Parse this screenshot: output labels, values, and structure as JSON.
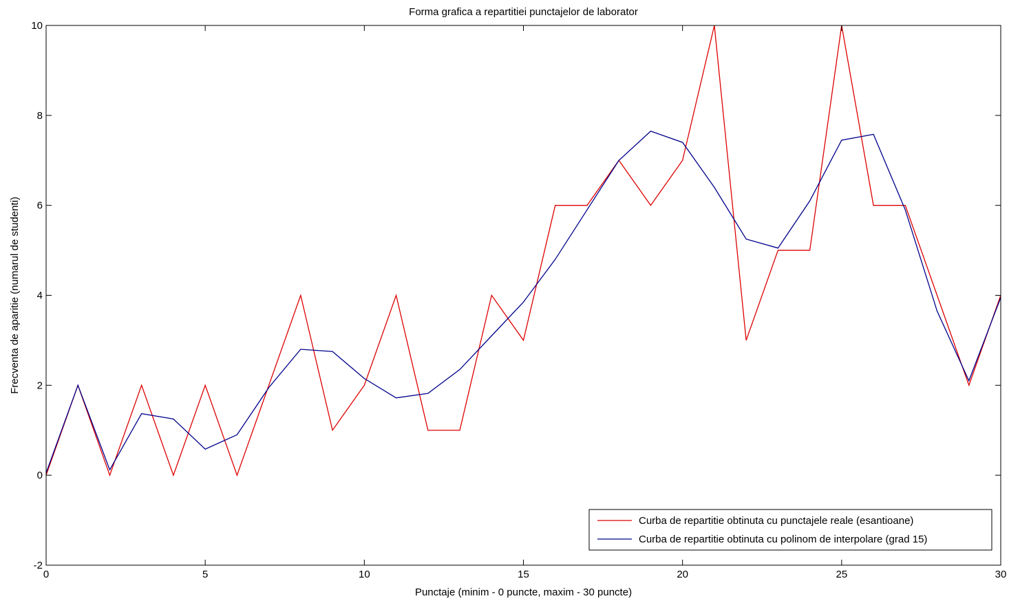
{
  "chart_data": {
    "type": "line",
    "title": "Forma grafica a repartitiei punctajelor de laborator",
    "xlabel": "Punctaje (minim - 0 puncte, maxim - 30 puncte)",
    "ylabel": "Frecventa de aparitie (numarul de studenti)",
    "xlim": [
      0,
      30
    ],
    "ylim": [
      -2,
      10
    ],
    "xticks": [
      0,
      5,
      10,
      15,
      20,
      25,
      30
    ],
    "yticks": [
      -2,
      0,
      2,
      4,
      6,
      8,
      10
    ],
    "grid": false,
    "legend_position": "bottom-right",
    "x": [
      0,
      1,
      2,
      3,
      4,
      5,
      6,
      7,
      8,
      9,
      10,
      11,
      12,
      13,
      14,
      15,
      16,
      17,
      18,
      19,
      20,
      21,
      22,
      23,
      24,
      25,
      26,
      27,
      28,
      29,
      30
    ],
    "series": [
      {
        "name": "Curba de repartitie obtinuta cu punctajele reale (esantioane)",
        "color": "#dd0000",
        "values": [
          0,
          2,
          0,
          2,
          0,
          2,
          0,
          2,
          4,
          1,
          2,
          4,
          1,
          1,
          4,
          3,
          6,
          6,
          7,
          6,
          7,
          10,
          3,
          5,
          5,
          10,
          6,
          6,
          4,
          2,
          4
        ]
      },
      {
        "name": "Curba de repartitie obtinuta cu polinom de interpolare (grad 15)",
        "color": "#00008b",
        "values": [
          0.05,
          2.0,
          0.12,
          1.37,
          1.25,
          0.58,
          0.9,
          1.95,
          2.8,
          2.75,
          2.15,
          1.72,
          1.82,
          2.35,
          3.1,
          3.85,
          4.8,
          5.9,
          7.0,
          7.65,
          7.4,
          6.4,
          5.25,
          5.05,
          6.1,
          7.45,
          7.58,
          5.9,
          3.65,
          2.1,
          3.95
        ]
      }
    ]
  }
}
